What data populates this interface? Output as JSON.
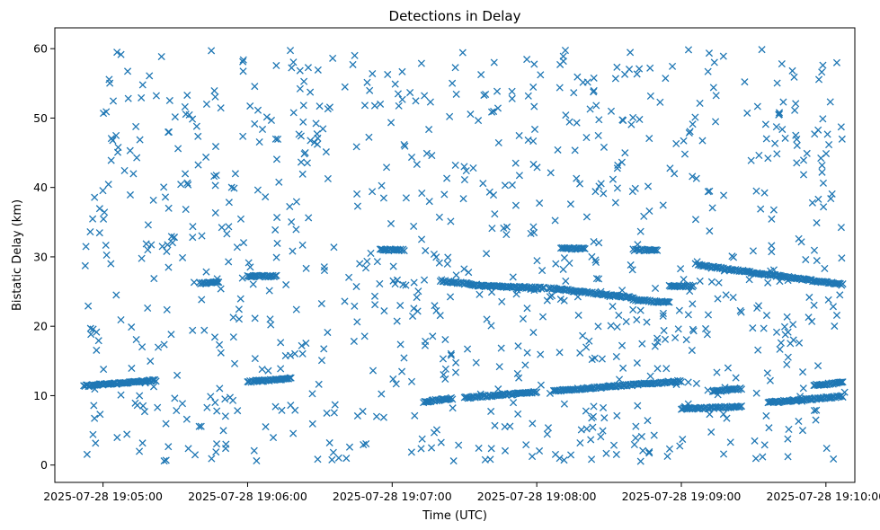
{
  "chart_data": {
    "type": "scatter",
    "title": "Detections in Delay",
    "xlabel": "Time (UTC)",
    "ylabel": "Bistatic Delay (km)",
    "x_range": [
      "2025-07-28 19:04:40",
      "2025-07-28 19:10:12"
    ],
    "ylim": [
      -2.5,
      63
    ],
    "x_ticks": [
      "2025-07-28 19:05:00",
      "2025-07-28 19:06:00",
      "2025-07-28 19:07:00",
      "2025-07-28 19:08:00",
      "2025-07-28 19:09:00",
      "2025-07-28 19:10:00"
    ],
    "y_ticks": [
      0,
      10,
      20,
      30,
      40,
      50,
      60
    ],
    "marker": "x",
    "color": "#1f77b4",
    "grid": false,
    "tracks": [
      {
        "start": "2025-07-28 19:04:52",
        "end": "2025-07-28 19:05:22",
        "delay_start": 11.4,
        "delay_end": 12.2
      },
      {
        "start": "2025-07-28 19:06:00",
        "end": "2025-07-28 19:06:18",
        "delay_start": 12.0,
        "delay_end": 12.5
      },
      {
        "start": "2025-07-28 19:07:13",
        "end": "2025-07-28 19:07:25",
        "delay_start": 9.1,
        "delay_end": 9.6
      },
      {
        "start": "2025-07-28 19:07:30",
        "end": "2025-07-28 19:08:00",
        "delay_start": 9.7,
        "delay_end": 10.5
      },
      {
        "start": "2025-07-28 19:08:07",
        "end": "2025-07-28 19:09:00",
        "delay_start": 10.7,
        "delay_end": 12.1
      },
      {
        "start": "2025-07-28 19:09:13",
        "end": "2025-07-28 19:09:25",
        "delay_start": 10.6,
        "delay_end": 11.0
      },
      {
        "start": "2025-07-28 19:09:36",
        "end": "2025-07-28 19:10:07",
        "delay_start": 9.0,
        "delay_end": 9.9
      },
      {
        "start": "2025-07-28 19:09:00",
        "end": "2025-07-28 19:09:25",
        "delay_start": 8.1,
        "delay_end": 8.4
      },
      {
        "start": "2025-07-28 19:09:55",
        "end": "2025-07-28 19:10:07",
        "delay_start": 11.5,
        "delay_end": 11.9
      },
      {
        "start": "2025-07-28 19:07:20",
        "end": "2025-07-28 19:07:38",
        "delay_start": 26.6,
        "delay_end": 25.8
      },
      {
        "start": "2025-07-28 19:07:38",
        "end": "2025-07-28 19:08:03",
        "delay_start": 25.8,
        "delay_end": 25.5
      },
      {
        "start": "2025-07-28 19:08:05",
        "end": "2025-07-28 19:08:40",
        "delay_start": 25.5,
        "delay_end": 24.1
      },
      {
        "start": "2025-07-28 19:08:40",
        "end": "2025-07-28 19:08:55",
        "delay_start": 23.8,
        "delay_end": 23.4
      },
      {
        "start": "2025-07-28 19:09:07",
        "end": "2025-07-28 19:10:07",
        "delay_start": 28.8,
        "delay_end": 26.0
      },
      {
        "start": "2025-07-28 19:06:00",
        "end": "2025-07-28 19:06:12",
        "delay_start": 27.2,
        "delay_end": 27.2
      },
      {
        "start": "2025-07-28 19:05:40",
        "end": "2025-07-28 19:05:48",
        "delay_start": 26.2,
        "delay_end": 26.4
      },
      {
        "start": "2025-07-28 19:06:55",
        "end": "2025-07-28 19:07:05",
        "delay_start": 31.0,
        "delay_end": 31.0
      },
      {
        "start": "2025-07-28 19:08:10",
        "end": "2025-07-28 19:08:20",
        "delay_start": 31.2,
        "delay_end": 31.2
      },
      {
        "start": "2025-07-28 19:08:40",
        "end": "2025-07-28 19:08:50",
        "delay_start": 31.0,
        "delay_end": 31.0
      },
      {
        "start": "2025-07-28 19:08:55",
        "end": "2025-07-28 19:09:05",
        "delay_start": 25.8,
        "delay_end": 25.8
      }
    ],
    "clutter": {
      "count": 900,
      "delay_min": 0.5,
      "delay_max": 60
    }
  }
}
